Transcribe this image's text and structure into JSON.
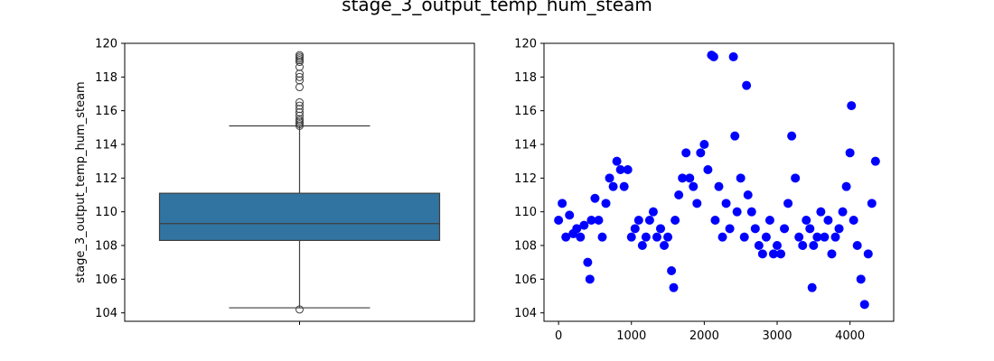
{
  "figure": {
    "title": "stage_3_output_temp_hum_steam"
  },
  "chart_data": [
    {
      "type": "box",
      "ylabel": "stage_3_output_temp_hum_steam",
      "xlabel": "",
      "ylim": [
        103.5,
        120
      ],
      "yticks": [
        104,
        106,
        108,
        110,
        112,
        114,
        116,
        118,
        120
      ],
      "stats": {
        "whisker_low": 104.3,
        "q1": 108.3,
        "median": 109.3,
        "q3": 111.1,
        "whisker_high": 115.1
      },
      "outliers": [
        104.2,
        115.1,
        115.2,
        115.3,
        115.4,
        115.5,
        115.7,
        115.9,
        116.1,
        116.3,
        116.5,
        117.4,
        117.8,
        118.0,
        118.2,
        118.6,
        118.9,
        119.0,
        119.1,
        119.2,
        119.3
      ],
      "colors": {
        "box": "#3274a1",
        "line": "#3f3f3f"
      }
    },
    {
      "type": "scatter",
      "xlim": [
        -200,
        4600
      ],
      "ylim": [
        103.5,
        120
      ],
      "xticks": [
        0,
        1000,
        2000,
        3000,
        4000
      ],
      "yticks": [
        104,
        106,
        108,
        110,
        112,
        114,
        116,
        118,
        120
      ],
      "color": "#0000ff",
      "series": [
        {
          "x": [
            0,
            50,
            100,
            150,
            200,
            250,
            300,
            350,
            400,
            430,
            450,
            500,
            550,
            600,
            650,
            700,
            750,
            800,
            850,
            900,
            950,
            1000,
            1050,
            1100,
            1150,
            1200,
            1250,
            1300,
            1350,
            1400,
            1450,
            1500,
            1550,
            1580,
            1600,
            1650,
            1700,
            1750,
            1800,
            1850,
            1900,
            1950,
            2000,
            2050,
            2100,
            2130,
            2150,
            2200,
            2250,
            2300,
            2350,
            2400,
            2420,
            2450,
            2500,
            2550,
            2580,
            2600,
            2650,
            2700,
            2750,
            2800,
            2850,
            2900,
            2950,
            3000,
            3050,
            3100,
            3150,
            3200,
            3250,
            3300,
            3350,
            3400,
            3450,
            3480,
            3500,
            3550,
            3600,
            3650,
            3700,
            3750,
            3800,
            3850,
            3900,
            3950,
            4000,
            4020,
            4050,
            4100,
            4150,
            4200,
            4250,
            4300,
            4350
          ],
          "y": [
            109.5,
            110.5,
            108.5,
            109.8,
            108.7,
            109.0,
            108.5,
            109.2,
            107.0,
            106.0,
            109.5,
            110.8,
            109.5,
            108.5,
            110.5,
            112.0,
            111.5,
            113.0,
            112.5,
            111.5,
            112.5,
            108.5,
            109.0,
            109.5,
            108.0,
            108.5,
            109.5,
            110.0,
            108.5,
            109.0,
            108.0,
            108.5,
            106.5,
            105.5,
            109.5,
            111.0,
            112.0,
            113.5,
            112.0,
            111.5,
            110.5,
            113.5,
            114.0,
            112.5,
            119.3,
            119.2,
            109.5,
            111.5,
            108.5,
            110.5,
            109.0,
            119.2,
            114.5,
            110.0,
            112.0,
            108.5,
            117.5,
            111.0,
            110.0,
            109.0,
            108.0,
            107.5,
            108.5,
            109.5,
            107.5,
            108.0,
            107.5,
            109.0,
            110.5,
            114.5,
            112.0,
            108.5,
            108.0,
            109.5,
            109.0,
            105.5,
            108.0,
            108.5,
            110.0,
            108.5,
            109.5,
            107.5,
            108.5,
            109.0,
            110.0,
            111.5,
            113.5,
            116.3,
            109.5,
            108.0,
            106.0,
            104.5,
            107.5,
            110.5,
            113.0
          ]
        }
      ]
    }
  ]
}
